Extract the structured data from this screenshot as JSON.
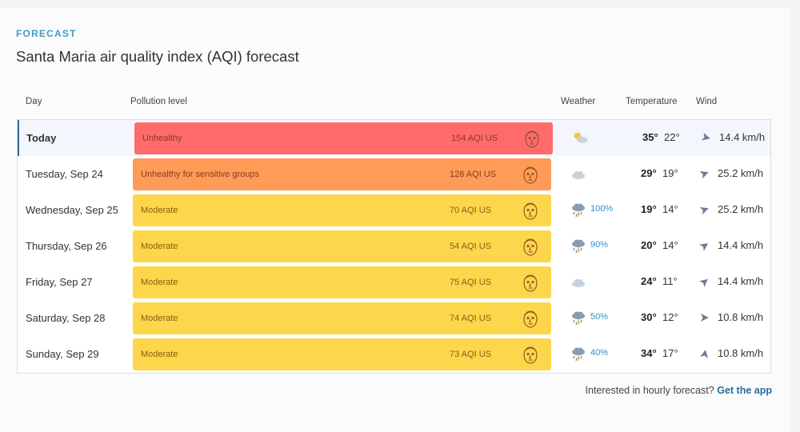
{
  "header": {
    "eyebrow": "FORECAST",
    "title": "Santa Maria air quality index (AQI) forecast"
  },
  "columns": {
    "day": "Day",
    "pollution": "Pollution level",
    "weather": "Weather",
    "temperature": "Temperature",
    "wind": "Wind"
  },
  "colors": {
    "unhealthy": "#ff6b6b",
    "sensitive": "#ff9b57",
    "moderate": "#fdd64b"
  },
  "rows": [
    {
      "day": "Today",
      "level": "Unhealthy",
      "aqi": "154 AQI US",
      "level_color": "#ff6b6b",
      "weather_icon": "sun-cloud-icon",
      "precip": "",
      "hi": "35°",
      "lo": "22°",
      "wind": "14.4 km/h"
    },
    {
      "day": "Tuesday, Sep 24",
      "level": "Unhealthy for sensitive groups",
      "aqi": "128 AQI US",
      "level_color": "#ff9b57",
      "weather_icon": "cloud-icon",
      "precip": "",
      "hi": "29°",
      "lo": "19°",
      "wind": "25.2 km/h"
    },
    {
      "day": "Wednesday, Sep 25",
      "level": "Moderate",
      "aqi": "70 AQI US",
      "level_color": "#fdd64b",
      "weather_icon": "storm-icon",
      "precip": "100%",
      "hi": "19°",
      "lo": "14°",
      "wind": "25.2 km/h"
    },
    {
      "day": "Thursday, Sep 26",
      "level": "Moderate",
      "aqi": "54 AQI US",
      "level_color": "#fdd64b",
      "weather_icon": "storm-icon",
      "precip": "90%",
      "hi": "20°",
      "lo": "14°",
      "wind": "14.4 km/h"
    },
    {
      "day": "Friday, Sep 27",
      "level": "Moderate",
      "aqi": "75 AQI US",
      "level_color": "#fdd64b",
      "weather_icon": "cloud-icon",
      "precip": "",
      "hi": "24°",
      "lo": "11°",
      "wind": "14.4 km/h"
    },
    {
      "day": "Saturday, Sep 28",
      "level": "Moderate",
      "aqi": "74 AQI US",
      "level_color": "#fdd64b",
      "weather_icon": "storm-icon",
      "precip": "50%",
      "hi": "30°",
      "lo": "12°",
      "wind": "10.8 km/h"
    },
    {
      "day": "Sunday, Sep 29",
      "level": "Moderate",
      "aqi": "73 AQI US",
      "level_color": "#fdd64b",
      "weather_icon": "storm-icon",
      "precip": "40%",
      "hi": "34°",
      "lo": "17°",
      "wind": "10.8 km/h"
    }
  ],
  "footer": {
    "text": "Interested in hourly forecast?",
    "link": "Get the app"
  }
}
